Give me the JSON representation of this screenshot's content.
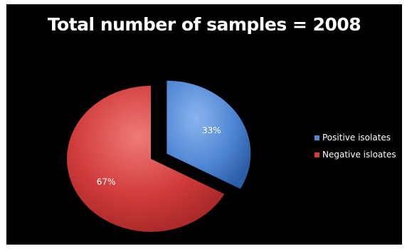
{
  "chart_data": {
    "type": "pie",
    "title": "Total number of samples = 2008",
    "slices": [
      {
        "label": "Positive isolates",
        "value": 33,
        "display": "33%",
        "color": "#4f86d4",
        "exploded": true
      },
      {
        "label": "Negative isloates",
        "value": 67,
        "display": "67%",
        "color": "#d13b3b",
        "exploded": false
      }
    ],
    "legend_position": "right",
    "background": "#000000"
  }
}
